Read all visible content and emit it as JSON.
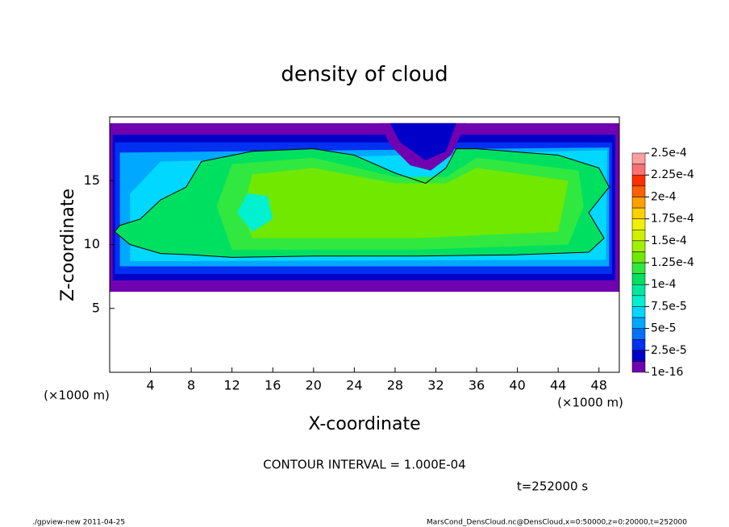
{
  "chart_data": {
    "type": "contour",
    "title": "density of cloud",
    "x_label": "X-coordinate",
    "y_label": "Z-coordinate",
    "x_unit": "(×1000 m)",
    "y_unit": "(×1000 m)",
    "xlim": [
      0,
      50
    ],
    "ylim": [
      0,
      20
    ],
    "xticks": [
      4,
      8,
      12,
      16,
      20,
      24,
      28,
      32,
      36,
      40,
      44,
      48
    ],
    "yticks": [
      5,
      10,
      15
    ],
    "levels": [
      {
        "value": 1e-16,
        "label": "1e-16"
      },
      {
        "value": 2.5e-05,
        "label": "2.5e-5"
      },
      {
        "value": 5e-05,
        "label": "5e-5"
      },
      {
        "value": 7.5e-05,
        "label": "7.5e-5"
      },
      {
        "value": 0.0001,
        "label": "1e-4"
      },
      {
        "value": 0.000125,
        "label": "1.25e-4"
      },
      {
        "value": 0.00015,
        "label": "1.5e-4"
      },
      {
        "value": 0.000175,
        "label": "1.75e-4"
      },
      {
        "value": 0.0002,
        "label": "2e-4"
      },
      {
        "value": 0.000225,
        "label": "2.25e-4"
      },
      {
        "value": 0.00025,
        "label": "2.5e-4"
      }
    ],
    "colors": [
      "#7000b0",
      "#0000c8",
      "#0030f0",
      "#0070ff",
      "#00a8ff",
      "#00d8ff",
      "#00f0d0",
      "#00e8a0",
      "#00e060",
      "#30e840",
      "#70e800",
      "#a0f000",
      "#d0f000",
      "#f0f000",
      "#ffd000",
      "#ffa000",
      "#ff6000",
      "#ff3000",
      "#ff7070",
      "#ffa0a0"
    ],
    "contour_interval": "CONTOUR INTERVAL = 1.000E-04",
    "time_label": "t=252000 s",
    "footer_left": "./gpview-new  2011-04-25",
    "footer_right": "MarsCond_DensCloud.nc@DensCloud,x=0:50000,z=0:20000,t=252000"
  }
}
